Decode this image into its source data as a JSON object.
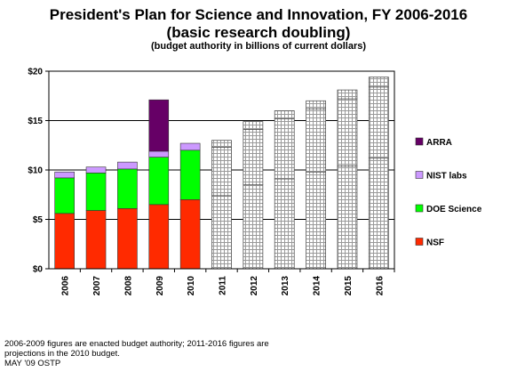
{
  "chart_data": {
    "type": "bar",
    "stacked": true,
    "title": "President's Plan for Science and Innovation, FY 2006-2016",
    "subtitle": "(basic research doubling)",
    "subsubtitle": "(budget authority in billions of current dollars)",
    "categories": [
      "2006",
      "2007",
      "2008",
      "2009",
      "2010",
      "2011",
      "2012",
      "2013",
      "2014",
      "2015",
      "2016"
    ],
    "y_ticks": [
      "$0",
      "$5",
      "$10",
      "$15",
      "$20"
    ],
    "ylim": [
      0,
      20
    ],
    "grid": true,
    "legend_position": "right",
    "series": [
      {
        "name": "NSF",
        "color": "#ff2a00",
        "values": [
          5.6,
          5.9,
          6.1,
          6.5,
          7.0,
          7.4,
          8.5,
          9.1,
          9.8,
          10.4,
          11.2
        ]
      },
      {
        "name": "DOE Science",
        "color": "#00ff00",
        "values": [
          3.6,
          3.8,
          4.0,
          4.8,
          5.0,
          4.9,
          5.6,
          6.1,
          6.4,
          6.8,
          7.2
        ]
      },
      {
        "name": "NIST labs",
        "color": "#cc99ff",
        "values": [
          0.6,
          0.6,
          0.7,
          0.6,
          0.7,
          0.7,
          0.8,
          0.8,
          0.8,
          0.9,
          1.0
        ]
      },
      {
        "name": "ARRA",
        "color": "#660066",
        "values": [
          0,
          0,
          0,
          5.2,
          0,
          0,
          0,
          0,
          0,
          0,
          0
        ]
      }
    ],
    "projection_from": "2011",
    "projection_pattern": "gray-grid"
  },
  "footnotes": [
    "2006-2009 figures are enacted budget authority; 2011-2016 figures are",
    "projections in the 2010 budget.",
    "MAY '09 OSTP"
  ]
}
